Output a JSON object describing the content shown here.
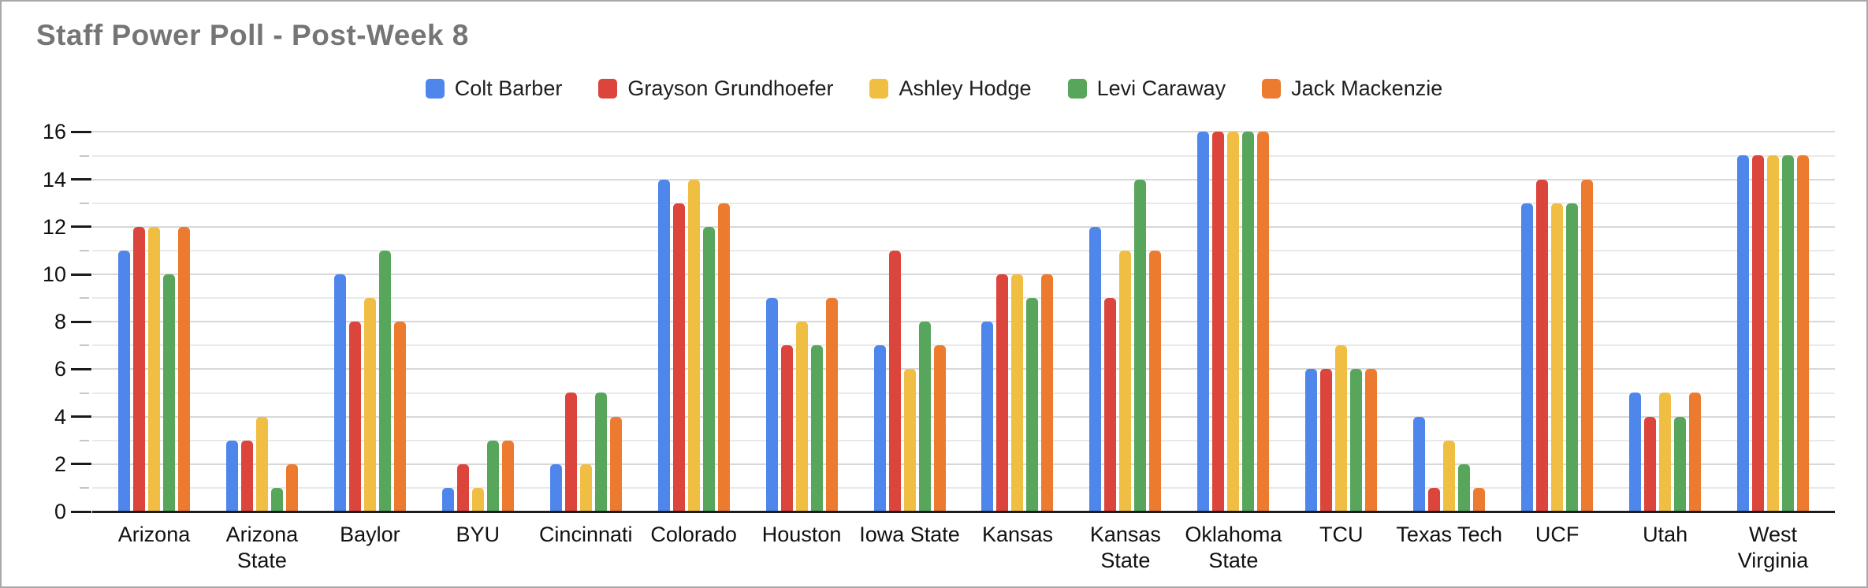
{
  "header": {
    "title": "Staff Power Poll - Post-Week 8"
  },
  "chart_data": {
    "type": "bar",
    "title": "Staff Power Poll - Post-Week 8",
    "xlabel": "",
    "ylabel": "",
    "ylim": [
      0,
      16
    ],
    "ytick_step": 2,
    "y_tick_labels": [
      "0",
      "2",
      "4",
      "6",
      "8",
      "10",
      "12",
      "14",
      "16"
    ],
    "minor_gridline_step": 1,
    "grid": true,
    "legend_position": "top",
    "categories": [
      "Arizona",
      "Arizona\nState",
      "Baylor",
      "BYU",
      "Cincinnati",
      "Colorado",
      "Houston",
      "Iowa State",
      "Kansas",
      "Kansas\nState",
      "Oklahoma\nState",
      "TCU",
      "Texas Tech",
      "UCF",
      "Utah",
      "West\nVirginia"
    ],
    "series": [
      {
        "name": "Colt Barber",
        "color": "#4e86ec",
        "values": [
          11,
          3,
          10,
          1,
          2,
          14,
          9,
          7,
          8,
          12,
          16,
          6,
          4,
          13,
          5,
          15
        ]
      },
      {
        "name": "Grayson Grundhoefer",
        "color": "#db453c",
        "values": [
          12,
          3,
          8,
          2,
          5,
          13,
          7,
          11,
          10,
          9,
          16,
          6,
          1,
          14,
          4,
          15
        ]
      },
      {
        "name": "Ashley Hodge",
        "color": "#f0be42",
        "values": [
          12,
          4,
          9,
          1,
          2,
          14,
          8,
          6,
          10,
          11,
          16,
          7,
          3,
          13,
          5,
          15
        ]
      },
      {
        "name": "Levi Caraway",
        "color": "#58a55c",
        "values": [
          10,
          1,
          11,
          3,
          5,
          12,
          7,
          8,
          9,
          14,
          16,
          6,
          2,
          13,
          4,
          15
        ]
      },
      {
        "name": "Jack Mackenzie",
        "color": "#ec7a2f",
        "values": [
          12,
          2,
          8,
          3,
          4,
          13,
          9,
          7,
          10,
          11,
          16,
          6,
          1,
          14,
          5,
          15
        ]
      }
    ]
  }
}
